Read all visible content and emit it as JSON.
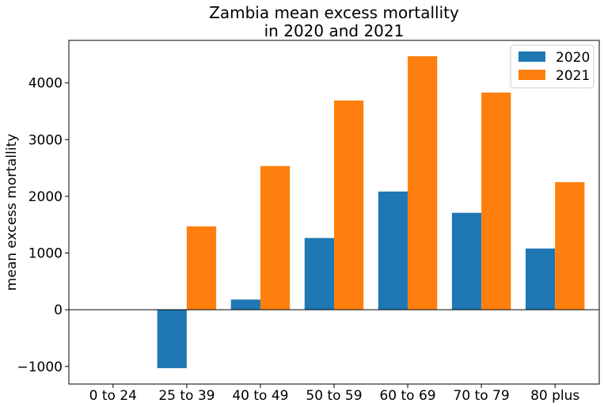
{
  "chart_data": {
    "type": "bar",
    "title_line1": "Zambia mean excess mortallity",
    "title_line2": "in 2020 and 2021",
    "xlabel": "",
    "ylabel": "mean excess mortallity",
    "categories": [
      "0 to 24",
      "25 to 39",
      "40 to 49",
      "50 to 59",
      "60 to 69",
      "70 to 79",
      "80 plus"
    ],
    "series": [
      {
        "name": "2020",
        "color": "#1f77b4",
        "values": [
          0,
          -1030,
          180,
          1265,
          2085,
          1710,
          1080
        ]
      },
      {
        "name": "2021",
        "color": "#ff7f0e",
        "values": [
          0,
          1470,
          2535,
          3690,
          4470,
          3830,
          2250
        ]
      }
    ],
    "ylim": [
      -1310,
      4750
    ],
    "yticks": [
      -1000,
      0,
      1000,
      2000,
      3000,
      4000
    ],
    "ytick_labels": [
      "−1000",
      "0",
      "1000",
      "2000",
      "3000",
      "4000"
    ],
    "zero_line": true,
    "grid": false,
    "legend_position": "top-right"
  }
}
